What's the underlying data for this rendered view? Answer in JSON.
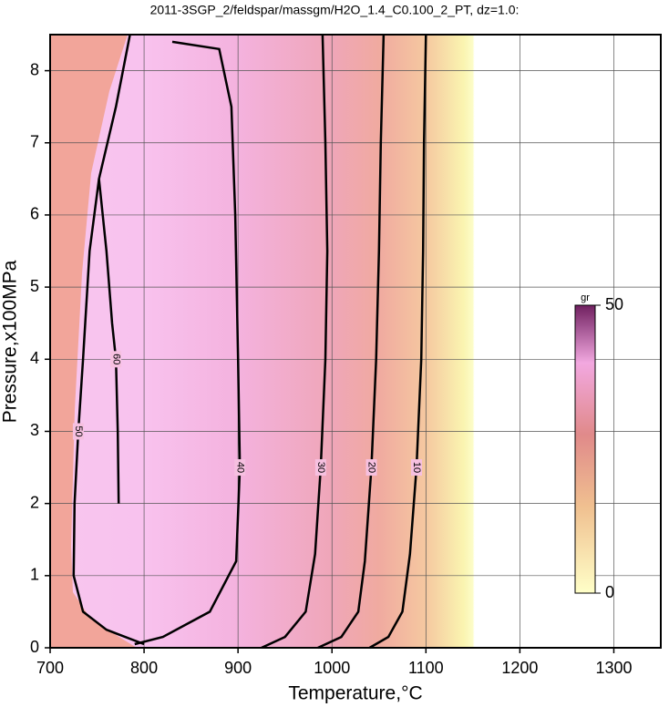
{
  "chart_data": {
    "type": "contour",
    "title": "2011-3SGP_2/feldspar/massgm/H2O_1.4_C0.100_2_PT, dz=1.0:",
    "x_label": "Temperature,°C",
    "y_label": "Pressure,x100MPa",
    "xlim": [
      700,
      1350
    ],
    "ylim": [
      0,
      8.5
    ],
    "xticks": [
      700,
      800,
      900,
      1000,
      1100,
      1200,
      1300
    ],
    "yticks": [
      0,
      1,
      2,
      3,
      4,
      5,
      6,
      7,
      8
    ],
    "grid": true,
    "contours": [
      {
        "level": 10,
        "x": [
          1100,
          1098,
          1097,
          1095,
          1090,
          1083,
          1075,
          1060,
          1040
        ],
        "y": [
          8.5,
          7,
          5.5,
          4,
          2.5,
          1.3,
          0.5,
          0.15,
          0
        ]
      },
      {
        "level": 20,
        "x": [
          1055,
          1052,
          1050,
          1047,
          1042,
          1035,
          1028,
          1010,
          985
        ],
        "y": [
          8.5,
          7,
          5.5,
          4,
          2.5,
          1.2,
          0.5,
          0.15,
          0
        ]
      },
      {
        "level": 30,
        "x": [
          990,
          993,
          995,
          993,
          988,
          982,
          972,
          950,
          925
        ],
        "y": [
          8.5,
          7,
          5.5,
          4,
          2.5,
          1.3,
          0.5,
          0.15,
          0
        ]
      },
      {
        "level": 40,
        "x": [
          830,
          880,
          893,
          897,
          900,
          902,
          898,
          870,
          820,
          790
        ],
        "y": [
          8.4,
          8.3,
          7.5,
          6,
          4,
          2.5,
          1.2,
          0.5,
          0.15,
          0.05
        ]
      },
      {
        "level": 50,
        "x": [
          785,
          770,
          752,
          742,
          735,
          730,
          726,
          725,
          735,
          760,
          800
        ],
        "y": [
          8.5,
          7.5,
          6.5,
          5.5,
          4,
          3,
          2,
          1,
          0.5,
          0.25,
          0.05
        ]
      },
      {
        "level": 60,
        "x": [
          752,
          760,
          766,
          770,
          772,
          773
        ],
        "y": [
          6.5,
          5.5,
          4.5,
          4,
          3,
          2
        ]
      }
    ],
    "colorbar": {
      "label": "gr",
      "lim": [
        0,
        50
      ],
      "ticks": [
        0,
        50
      ]
    }
  }
}
